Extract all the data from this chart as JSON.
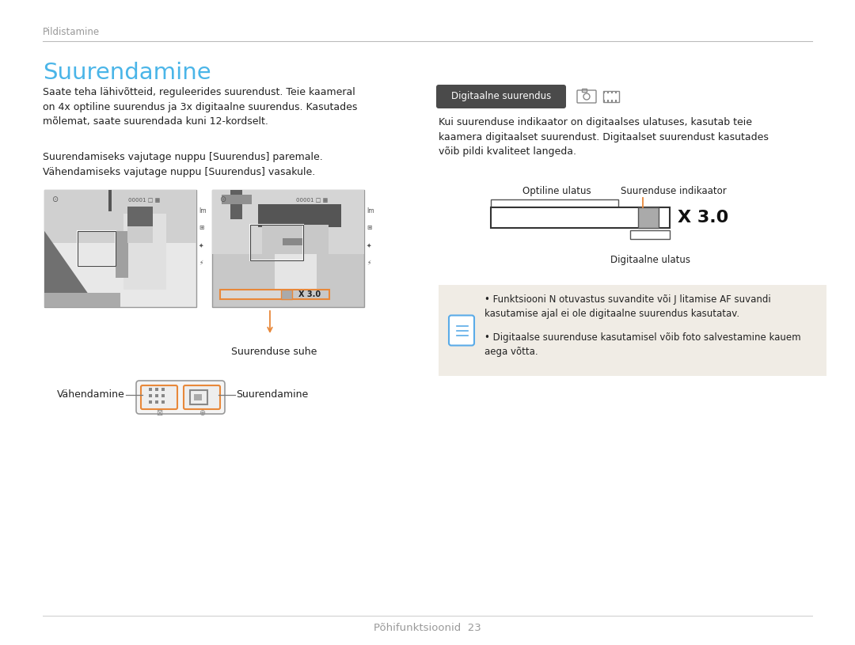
{
  "bg_color": "#ffffff",
  "page_top_label": "Pildistamine",
  "title": "Suurendamine",
  "title_color": "#4ab5e8",
  "body_text_1": "Saate teha lähivõtteid, reguleerides suurendust. Teie kaameral\non 4x optiline suurendus ja 3x digitaalne suurendus. Kasutades\nmõlemat, saate suurendada kuni 12-kordselt.",
  "body_text_2": "Suurendamiseks vajutage nuppu [Suurendus] paremale.\nVähendamiseks vajutage nuppu [Suurendus] vasakule.",
  "caption_zoom": "Suurenduse suhe",
  "label_left": "Vähendamine",
  "label_right": "Suurendamine",
  "right_section_badge": "Digitaalne suurendus",
  "right_body_text": "Kui suurenduse indikaator on digitaalses ulatuses, kasutab teie\nkaamera digitaalset suurendust. Digitaalset suurendust kasutades\nvõib pildi kvaliteet langeda.",
  "label_optiline": "Optiline ulatus",
  "label_suurenduse": "Suurenduse indikaator",
  "label_digitaalne": "Digitaalne ulatus",
  "note_text_1": "Funktsiooni N otuvastus suvandite või J litamise AF suvandi\nkasutamise ajal ei ole digitaalne suurendus kasutatav.",
  "note_text_2": "Digitaalse suurenduse kasutamisel võib foto salvestamine kauem\naega võtta.",
  "footer_text": "Põhifunktsioonid",
  "footer_page": "23",
  "text_color": "#222222",
  "gray_text": "#999999",
  "line_color": "#cccccc",
  "note_bg": "#f0ece5",
  "badge_bg": "#4a4a4a",
  "badge_fg": "#ffffff",
  "orange_color": "#e8883a",
  "blue_icon_color": "#5aabe8",
  "screen_border": "#999999",
  "screen_bg": "#e8e8e8",
  "screen_dark": "#808080",
  "screen_mid": "#b8b8b8",
  "screen_light": "#d8d8d8",
  "diag_bar_color": "#aaaaaa"
}
